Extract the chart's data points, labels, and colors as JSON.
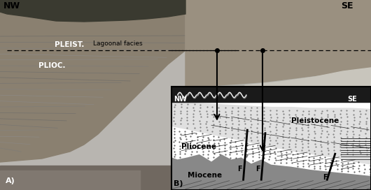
{
  "fig_width": 5.3,
  "fig_height": 2.72,
  "dpi": 100,
  "nw_label": "NW",
  "se_label": "SE",
  "pleist_label": "PLEIST.",
  "plioc_label": "PLIOC.",
  "lagoonal_label": "Lagoonal facies",
  "A_label": "A)",
  "B_label": "B)",
  "diagram_nw": "NW",
  "diagram_se": "SE",
  "pliocene_label": "Pliocene",
  "pleistocene_label": "Pleistocene",
  "miocene_label": "Miocene",
  "fault_labels": [
    "F",
    "F",
    "F"
  ],
  "photo_bg": "#909090",
  "cliff_color": "#888070",
  "veg_color": "#404030",
  "beach_color": "#c0b898",
  "sky_color": "#b8b8b0",
  "diagram_bg": "#c8c8c0",
  "miocene_color": "#909090",
  "pliocene_color": "#e8e8e8",
  "pleistocene_color": "#d8d8d8",
  "dark_band_color": "#202020",
  "white": "#ffffff",
  "black": "#000000"
}
